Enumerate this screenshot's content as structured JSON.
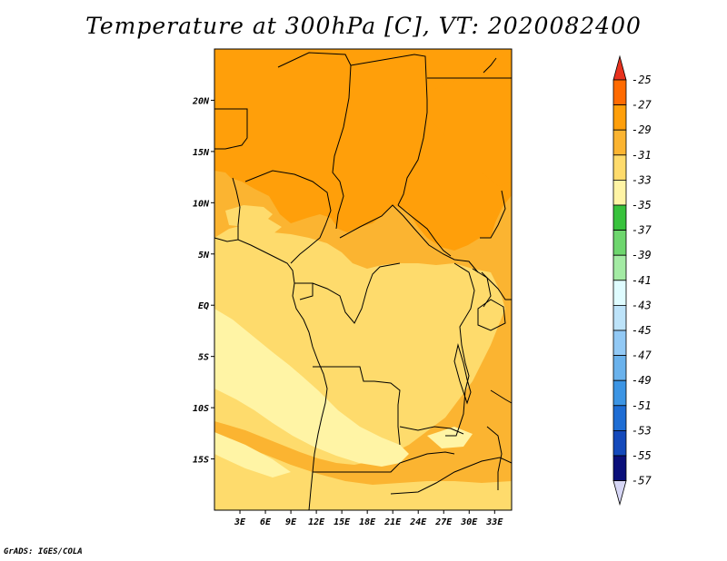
{
  "title": "Temperature at 300hPa [C], VT: 2020082400",
  "credit": "GrADS: IGES/COLA",
  "map": {
    "lon_range": [
      0,
      35
    ],
    "lat_range": [
      -20,
      25
    ],
    "lon_ticks": [
      {
        "value": 3,
        "label": "3E"
      },
      {
        "value": 6,
        "label": "6E"
      },
      {
        "value": 9,
        "label": "9E"
      },
      {
        "value": 12,
        "label": "12E"
      },
      {
        "value": 15,
        "label": "15E"
      },
      {
        "value": 18,
        "label": "18E"
      },
      {
        "value": 21,
        "label": "21E"
      },
      {
        "value": 24,
        "label": "24E"
      },
      {
        "value": 27,
        "label": "27E"
      },
      {
        "value": 30,
        "label": "30E"
      },
      {
        "value": 33,
        "label": "33E"
      }
    ],
    "lat_ticks": [
      {
        "value": 20,
        "label": "20N"
      },
      {
        "value": 15,
        "label": "15N"
      },
      {
        "value": 10,
        "label": "10N"
      },
      {
        "value": 5,
        "label": "5N"
      },
      {
        "value": 0,
        "label": "EQ"
      },
      {
        "value": -5,
        "label": "5S"
      },
      {
        "value": -10,
        "label": "10S"
      },
      {
        "value": -15,
        "label": "15S"
      }
    ]
  },
  "colorbar": {
    "labels": [
      "-25",
      "-27",
      "-29",
      "-31",
      "-33",
      "-35",
      "-37",
      "-39",
      "-41",
      "-43",
      "-45",
      "-47",
      "-49",
      "-51",
      "-53",
      "-55",
      "-57"
    ],
    "colors": [
      "#e8321e",
      "#ff6a00",
      "#ff9f0a",
      "#fbb431",
      "#fedb6c",
      "#fff4a5",
      "#38c23c",
      "#6ed66e",
      "#a4eba4",
      "#dffcff",
      "#bde3f9",
      "#92c9f5",
      "#6ab2ec",
      "#3c95e4",
      "#1e6dd4",
      "#1449bb",
      "#0a0f7a",
      "#d6d6f5"
    ],
    "arrow_top_color": "#e8321e",
    "arrow_bottom_color": "#d6d6f5"
  },
  "fill_colors": {
    "c29": "#ff9f0a",
    "c31": "#fbb431",
    "c33": "#fedb6c",
    "c35": "#fff4a5"
  }
}
